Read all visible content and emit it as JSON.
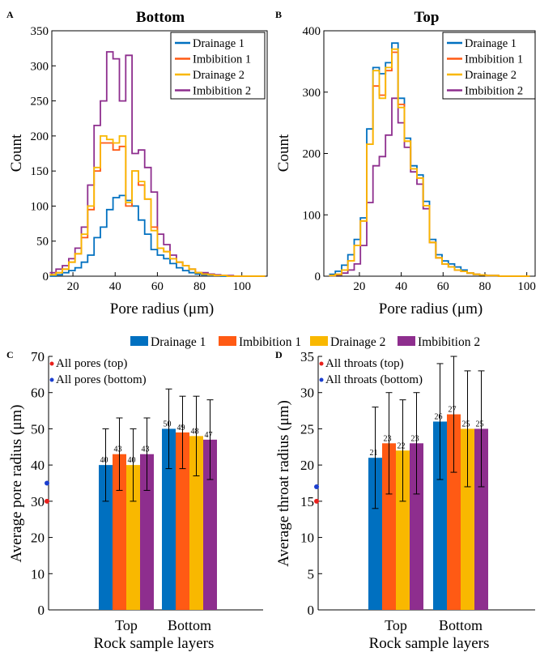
{
  "legend_shared": [
    {
      "name": "Drainage 1",
      "color": "#0070c0"
    },
    {
      "name": "Imbibition 1",
      "color": "#ff5a14"
    },
    {
      "name": "Drainage 2",
      "color": "#f9b800"
    },
    {
      "name": "Imbibition 2",
      "color": "#8e2e8e"
    }
  ],
  "chart_data": [
    {
      "panel": "A",
      "type": "line",
      "title": "Bottom",
      "xlabel": "Pore radius (μm)",
      "ylabel": "Count",
      "xlim": [
        10,
        112
      ],
      "ylim": [
        0,
        350
      ],
      "xticks": [
        20,
        40,
        60,
        80,
        100
      ],
      "yticks": [
        0,
        50,
        100,
        150,
        200,
        250,
        300,
        350
      ],
      "legend_position": "top-right",
      "x": [
        10.5,
        13.5,
        16.5,
        19.5,
        22.5,
        25.5,
        28.5,
        31.5,
        34.5,
        37.5,
        40.5,
        43.5,
        46.5,
        49.5,
        52.5,
        55.5,
        58.5,
        61.5,
        64.5,
        67.5,
        70.5,
        73.5,
        76.5,
        79.5,
        82.5,
        85.5,
        88.5,
        91.5,
        94.5,
        97.5,
        100.5,
        103.5,
        106.5,
        109.5
      ],
      "series": [
        {
          "name": "Drainage 1",
          "color": "#0070c0",
          "values": [
            0,
            2,
            5,
            8,
            12,
            20,
            30,
            55,
            70,
            95,
            112,
            115,
            108,
            100,
            80,
            60,
            38,
            30,
            25,
            18,
            12,
            8,
            5,
            3,
            2,
            1,
            1,
            0,
            0,
            0,
            0,
            0,
            0,
            0
          ]
        },
        {
          "name": "Imbibition 1",
          "color": "#ff5a14",
          "values": [
            2,
            5,
            10,
            20,
            32,
            55,
            95,
            150,
            190,
            190,
            180,
            185,
            100,
            150,
            130,
            110,
            70,
            40,
            35,
            25,
            20,
            15,
            10,
            5,
            3,
            2,
            1,
            1,
            0,
            0,
            0,
            0,
            0,
            0
          ]
        },
        {
          "name": "Drainage 2",
          "color": "#f9b800",
          "values": [
            2,
            5,
            10,
            20,
            32,
            60,
            100,
            155,
            200,
            195,
            190,
            200,
            105,
            150,
            135,
            110,
            65,
            40,
            35,
            25,
            20,
            15,
            10,
            5,
            3,
            2,
            1,
            1,
            0,
            0,
            0,
            0,
            0,
            0
          ]
        },
        {
          "name": "Imbibition 2",
          "color": "#8e2e8e",
          "values": [
            5,
            10,
            15,
            25,
            40,
            70,
            130,
            215,
            250,
            320,
            310,
            250,
            315,
            175,
            180,
            155,
            120,
            60,
            45,
            30,
            20,
            15,
            10,
            5,
            5,
            3,
            2,
            1,
            1,
            0,
            0,
            0,
            0,
            0
          ]
        }
      ]
    },
    {
      "panel": "B",
      "type": "line",
      "title": "Top",
      "xlabel": "Pore radius (μm)",
      "ylabel": "Count",
      "xlim": [
        3,
        104
      ],
      "ylim": [
        0,
        400
      ],
      "xticks": [
        20,
        40,
        60,
        80,
        100
      ],
      "yticks": [
        0,
        100,
        200,
        300,
        400
      ],
      "legend_position": "top-right",
      "x": [
        7,
        10,
        13,
        16,
        19,
        22,
        25,
        28,
        31,
        34,
        37,
        40,
        43,
        46,
        49,
        52,
        55,
        58,
        61,
        64,
        67,
        70,
        73,
        76,
        79,
        82,
        85,
        88,
        91,
        94,
        97,
        100
      ],
      "series": [
        {
          "name": "Drainage 1",
          "color": "#0070c0",
          "values": [
            3,
            8,
            18,
            35,
            60,
            95,
            240,
            340,
            330,
            348,
            380,
            290,
            225,
            180,
            165,
            122,
            60,
            35,
            25,
            20,
            15,
            10,
            5,
            3,
            2,
            1,
            1,
            0,
            0,
            0,
            0,
            0
          ]
        },
        {
          "name": "Imbibition 1",
          "color": "#ff5a14",
          "values": [
            1,
            3,
            10,
            25,
            50,
            90,
            215,
            310,
            295,
            335,
            365,
            280,
            220,
            175,
            160,
            115,
            55,
            30,
            20,
            15,
            10,
            8,
            5,
            3,
            2,
            1,
            1,
            0,
            0,
            0,
            0,
            0
          ]
        },
        {
          "name": "Drainage 2",
          "color": "#f9b800",
          "values": [
            1,
            3,
            10,
            25,
            50,
            90,
            215,
            335,
            290,
            340,
            370,
            275,
            220,
            175,
            160,
            115,
            55,
            30,
            20,
            15,
            10,
            8,
            5,
            3,
            2,
            1,
            1,
            0,
            0,
            0,
            0,
            0
          ]
        },
        {
          "name": "Imbibition 2",
          "color": "#8e2e8e",
          "values": [
            1,
            2,
            5,
            10,
            20,
            50,
            120,
            180,
            195,
            230,
            290,
            250,
            210,
            170,
            150,
            110,
            55,
            30,
            20,
            15,
            10,
            8,
            5,
            3,
            2,
            1,
            1,
            0,
            0,
            0,
            0,
            0
          ]
        }
      ]
    },
    {
      "panel": "C",
      "type": "bar",
      "categories": [
        "Top",
        "Bottom"
      ],
      "xlabel": "Rock sample layers",
      "ylabel": "Average pore radius (μm)",
      "ylim": [
        0,
        70
      ],
      "yticks": [
        0,
        10,
        20,
        30,
        40,
        50,
        60,
        70
      ],
      "series": [
        {
          "name": "Drainage 1",
          "color": "#0070c0",
          "values": [
            40,
            50
          ],
          "err": [
            10,
            11
          ],
          "labels": [
            "40",
            "50"
          ]
        },
        {
          "name": "Imbibition 1",
          "color": "#ff5a14",
          "values": [
            43,
            49
          ],
          "err": [
            10,
            10
          ],
          "labels": [
            "43",
            "49"
          ]
        },
        {
          "name": "Drainage 2",
          "color": "#f9b800",
          "values": [
            40,
            48
          ],
          "err": [
            10,
            11
          ],
          "labels": [
            "40",
            "48"
          ]
        },
        {
          "name": "Imbibition 2",
          "color": "#8e2e8e",
          "values": [
            43,
            47
          ],
          "err": [
            10,
            11
          ],
          "labels": [
            "43",
            "47"
          ]
        }
      ],
      "markers": [
        {
          "label": "All pores (top)",
          "value": 30,
          "color": "#e8201c"
        },
        {
          "label": "All pores (bottom)",
          "value": 35,
          "color": "#1c3fcf"
        }
      ],
      "legend_position": "top-left"
    },
    {
      "panel": "D",
      "type": "bar",
      "categories": [
        "Top",
        "Bottom"
      ],
      "xlabel": "Rock sample layers",
      "ylabel": "Average throat radius (μm)",
      "ylim": [
        0,
        35
      ],
      "yticks": [
        0,
        5,
        10,
        15,
        20,
        25,
        30,
        35
      ],
      "series": [
        {
          "name": "Drainage 1",
          "color": "#0070c0",
          "values": [
            21,
            26
          ],
          "err": [
            7,
            8
          ],
          "labels": [
            "21",
            "26"
          ]
        },
        {
          "name": "Imbibition 1",
          "color": "#ff5a14",
          "values": [
            23,
            27
          ],
          "err": [
            7,
            8
          ],
          "labels": [
            "23",
            "27"
          ]
        },
        {
          "name": "Drainage 2",
          "color": "#f9b800",
          "values": [
            22,
            25
          ],
          "err": [
            7,
            8
          ],
          "labels": [
            "22",
            "25"
          ]
        },
        {
          "name": "Imbibition 2",
          "color": "#8e2e8e",
          "values": [
            23,
            25
          ],
          "err": [
            7,
            8
          ],
          "labels": [
            "23",
            "25"
          ]
        }
      ],
      "markers": [
        {
          "label": "All throats (top)",
          "value": 15,
          "color": "#e8201c"
        },
        {
          "label": "All throats (bottom)",
          "value": 17,
          "color": "#1c3fcf"
        }
      ],
      "legend_position": "top-left"
    }
  ]
}
